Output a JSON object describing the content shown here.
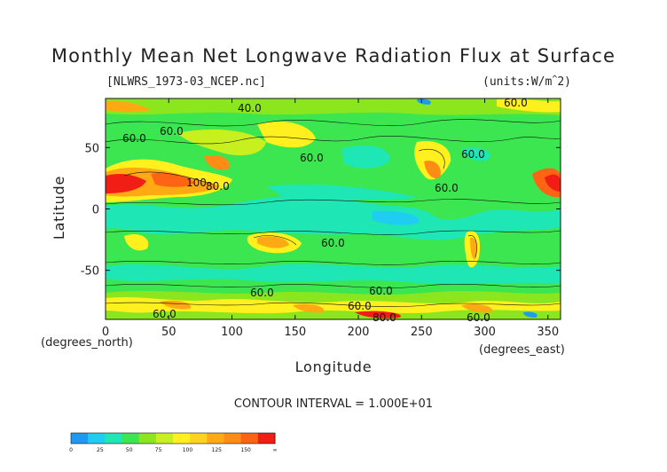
{
  "chart_data": {
    "type": "contour",
    "title": "Monthly Mean Net Longwave Radiation Flux at Surface",
    "file_label": "[NLWRS_1973-03_NCEP.nc]",
    "units_label": "(units:W/m^2)",
    "xlabel": "Longitude",
    "ylabel": "Latitude",
    "x_units": "(degrees_east)",
    "y_units": "(degrees_north)",
    "xlim": [
      0,
      360
    ],
    "ylim": [
      -90,
      90
    ],
    "x_ticks": [
      "0",
      "50",
      "100",
      "150",
      "200",
      "250",
      "300",
      "350"
    ],
    "y_ticks": [
      "50",
      "0",
      "-50"
    ],
    "x_tick_values": [
      0,
      50,
      100,
      150,
      200,
      250,
      300,
      350
    ],
    "y_tick_values": [
      50,
      0,
      -50
    ],
    "contour_interval_text": "CONTOUR INTERVAL = 1.000E+01",
    "contour_labels": [
      "40.0",
      "60.0",
      "60.0",
      "60.0",
      "60.0",
      "100",
      "80.0",
      "60.0",
      "60.0",
      "60.0",
      "60.0",
      "60.0",
      "60.0",
      "80.0",
      "60.0",
      "60.0"
    ],
    "colorbar": {
      "ticks": [
        "0",
        "25",
        "50",
        "75",
        "100",
        "125",
        "150",
        "∞"
      ],
      "colors": [
        "#1e9bf0",
        "#1ecdf0",
        "#1ee6b4",
        "#3ce650",
        "#8ce61e",
        "#c8f01e",
        "#fff01e",
        "#ffd21e",
        "#ffaa14",
        "#ff8c14",
        "#ff6414",
        "#f01e14"
      ]
    }
  }
}
